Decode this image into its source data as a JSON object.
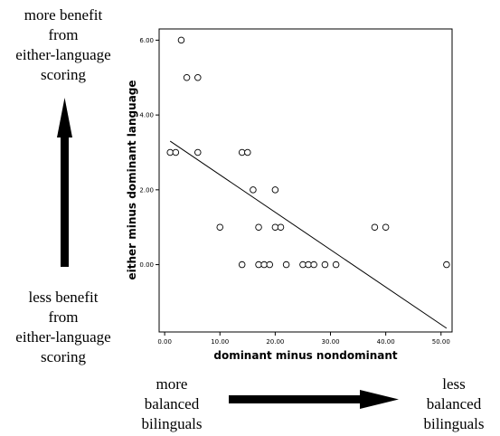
{
  "annotations": {
    "top": [
      "more benefit",
      "from",
      "either-language",
      "scoring"
    ],
    "bottom": [
      "less benefit",
      "from",
      "either-language",
      "scoring"
    ],
    "left": [
      "more",
      "balanced",
      "bilinguals"
    ],
    "right": [
      "less",
      "balanced",
      "bilinguals"
    ]
  },
  "chart_data": {
    "type": "scatter",
    "title": "",
    "xlabel": "dominant minus nondominant",
    "ylabel": "either minus dominant language",
    "xlim": [
      -1,
      52
    ],
    "ylim": [
      -1.8,
      6.3
    ],
    "x_ticks": [
      0,
      10,
      20,
      30,
      40,
      50
    ],
    "x_tick_labels": [
      "0.00",
      "10.00",
      "20.00",
      "30.00",
      "40.00",
      "50.00"
    ],
    "y_ticks": [
      0,
      2,
      4,
      6
    ],
    "y_tick_labels": [
      "0.00",
      "2.00",
      "4.00",
      "6.00"
    ],
    "grid": false,
    "points": [
      {
        "x": 3,
        "y": 6
      },
      {
        "x": 4,
        "y": 5
      },
      {
        "x": 6,
        "y": 5
      },
      {
        "x": 1,
        "y": 3
      },
      {
        "x": 2,
        "y": 3
      },
      {
        "x": 6,
        "y": 3
      },
      {
        "x": 14,
        "y": 3
      },
      {
        "x": 15,
        "y": 3
      },
      {
        "x": 16,
        "y": 2
      },
      {
        "x": 20,
        "y": 2
      },
      {
        "x": 10,
        "y": 1
      },
      {
        "x": 17,
        "y": 1
      },
      {
        "x": 20,
        "y": 1
      },
      {
        "x": 21,
        "y": 1
      },
      {
        "x": 38,
        "y": 1
      },
      {
        "x": 40,
        "y": 1
      },
      {
        "x": 14,
        "y": 0
      },
      {
        "x": 17,
        "y": 0
      },
      {
        "x": 18,
        "y": 0
      },
      {
        "x": 19,
        "y": 0
      },
      {
        "x": 22,
        "y": 0
      },
      {
        "x": 25,
        "y": 0
      },
      {
        "x": 26,
        "y": 0
      },
      {
        "x": 27,
        "y": 0
      },
      {
        "x": 29,
        "y": 0
      },
      {
        "x": 31,
        "y": 0
      },
      {
        "x": 51,
        "y": 0
      }
    ],
    "fit_line": {
      "x": [
        1,
        51
      ],
      "y": [
        3.3,
        -1.7
      ]
    }
  }
}
